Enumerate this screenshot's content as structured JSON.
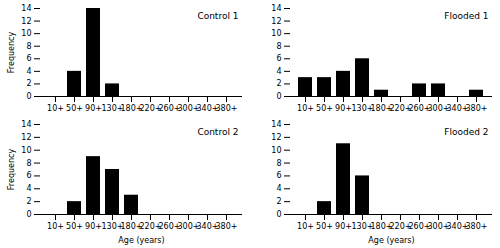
{
  "chart_data": [
    {
      "type": "bar",
      "title": "Control 1",
      "ylabel": "Frequency",
      "categories": [
        "10+",
        "50+",
        "90+",
        "130+",
        "180+",
        "220+",
        "260+",
        "300+",
        "340+",
        "380+"
      ],
      "values": [
        0,
        4,
        14,
        2,
        0,
        0,
        0,
        0,
        0,
        0
      ],
      "color": "#000000",
      "ylim": [
        0,
        14
      ],
      "yticks": [
        0,
        2,
        4,
        6,
        8,
        10,
        12,
        14
      ]
    },
    {
      "type": "bar",
      "title": "Flooded 1",
      "categories": [
        "10+",
        "50+",
        "90+",
        "130+",
        "180+",
        "220+",
        "260+",
        "300+",
        "340+",
        "380+"
      ],
      "values": [
        3,
        3,
        4,
        6,
        1,
        0,
        2,
        2,
        0,
        1
      ],
      "color": "#000000",
      "ylim": [
        0,
        14
      ],
      "yticks": [
        0,
        2,
        4,
        6,
        8,
        10,
        12,
        14
      ]
    },
    {
      "type": "bar",
      "title": "Control 2",
      "ylabel": "Frequency",
      "xlabel": "Age (years)",
      "categories": [
        "10+",
        "50+",
        "90+",
        "130+",
        "180+",
        "220+",
        "260+",
        "300+",
        "340+",
        "380+"
      ],
      "values": [
        0,
        2,
        9,
        7,
        3,
        0,
        0,
        0,
        0,
        0
      ],
      "color": "#000000",
      "ylim": [
        0,
        14
      ],
      "yticks": [
        0,
        2,
        4,
        6,
        8,
        10,
        12,
        14
      ]
    },
    {
      "type": "bar",
      "title": "Flooded 2",
      "xlabel": "Age (years)",
      "categories": [
        "10+",
        "50+",
        "90+",
        "130+",
        "180+",
        "220+",
        "260+",
        "300+",
        "340+",
        "380+"
      ],
      "values": [
        0,
        2,
        11,
        6,
        0,
        0,
        0,
        0,
        0,
        0
      ],
      "color": "#000000",
      "ylim": [
        0,
        14
      ],
      "yticks": [
        0,
        2,
        4,
        6,
        8,
        10,
        12,
        14
      ]
    }
  ]
}
